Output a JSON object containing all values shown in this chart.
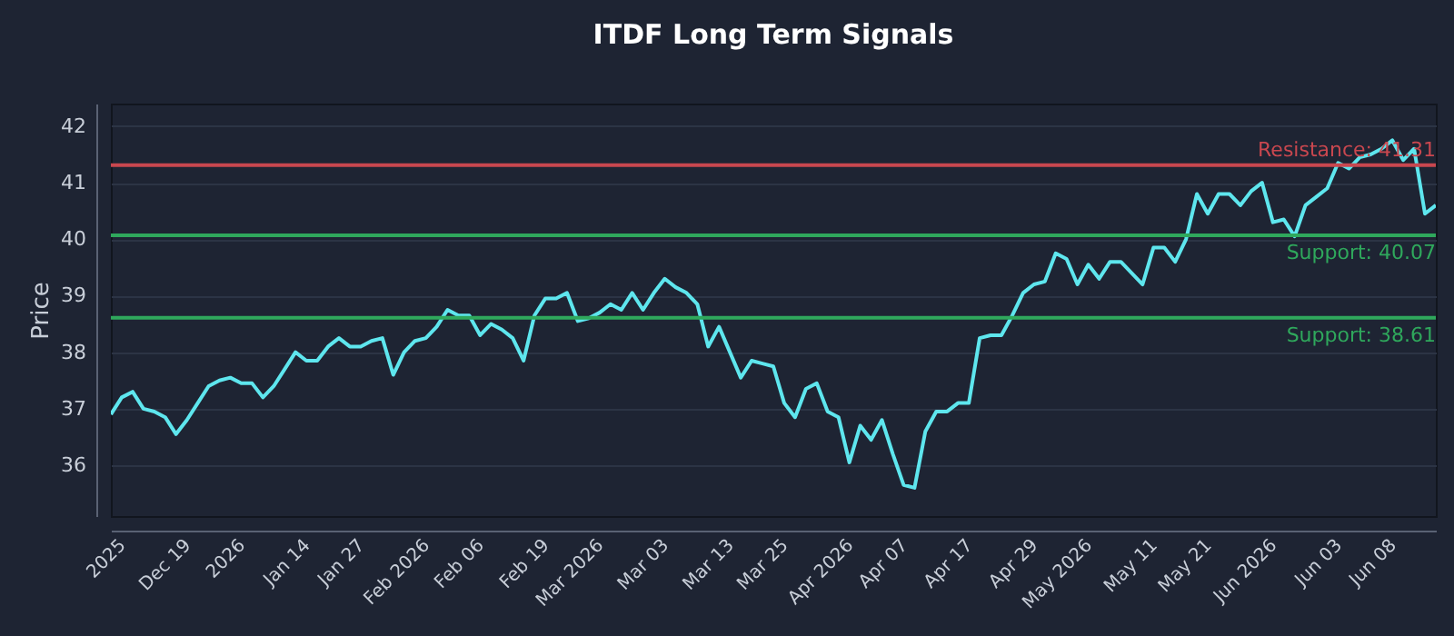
{
  "chart_data": {
    "type": "line",
    "title": "ITDF Long Term Signals",
    "ylabel": "Price",
    "categories": [
      null,
      "2025",
      null,
      null,
      null,
      null,
      null,
      "Dec 19",
      null,
      null,
      null,
      null,
      "2026",
      null,
      null,
      null,
      null,
      null,
      "Jan 14",
      null,
      null,
      null,
      null,
      "Jan 27",
      null,
      null,
      null,
      null,
      null,
      "Feb 2026",
      null,
      null,
      null,
      null,
      "Feb 06",
      null,
      null,
      null,
      null,
      null,
      "Feb 19",
      null,
      null,
      null,
      null,
      "Mar 2026",
      null,
      null,
      null,
      null,
      null,
      "Mar 03",
      null,
      null,
      null,
      null,
      null,
      "Mar 13",
      null,
      null,
      null,
      null,
      "Mar 25",
      null,
      null,
      null,
      null,
      null,
      "Apr 2026",
      null,
      null,
      null,
      null,
      "Apr 07",
      null,
      null,
      null,
      null,
      null,
      "Apr 17",
      null,
      null,
      null,
      null,
      null,
      "Apr 29",
      null,
      null,
      null,
      null,
      "May 2026",
      null,
      null,
      null,
      null,
      null,
      "May 11",
      null,
      null,
      null,
      null,
      "May 21",
      null,
      null,
      null,
      null,
      null,
      "Jun 2026",
      null,
      null,
      null,
      null,
      null,
      "Jun 03",
      null,
      null,
      null,
      null,
      "Jun 08",
      null,
      null,
      null,
      null
    ],
    "series": [
      {
        "color": "#5ee6ee",
        "values": [
          36.9,
          37.2,
          37.3,
          37.0,
          36.95,
          36.85,
          36.55,
          36.8,
          37.1,
          37.4,
          37.5,
          37.55,
          37.45,
          37.45,
          37.2,
          37.4,
          37.7,
          38.0,
          37.85,
          37.85,
          38.1,
          38.25,
          38.1,
          38.1,
          38.2,
          38.25,
          37.6,
          38.0,
          38.2,
          38.25,
          38.45,
          38.75,
          38.65,
          38.65,
          38.3,
          38.5,
          38.4,
          38.25,
          37.85,
          38.65,
          38.95,
          38.95,
          39.05,
          38.55,
          38.6,
          38.7,
          38.85,
          38.75,
          39.05,
          38.75,
          39.05,
          39.3,
          39.15,
          39.05,
          38.85,
          38.1,
          38.45,
          38.0,
          37.55,
          37.85,
          37.8,
          37.75,
          37.1,
          36.85,
          37.35,
          37.45,
          36.95,
          36.85,
          36.05,
          36.7,
          36.45,
          36.8,
          36.2,
          35.65,
          35.6,
          36.6,
          36.95,
          36.95,
          37.1,
          37.1,
          38.25,
          38.3,
          38.3,
          38.65,
          39.05,
          39.2,
          39.25,
          39.75,
          39.65,
          39.2,
          39.55,
          39.3,
          39.6,
          39.6,
          39.4,
          39.2,
          39.85,
          39.85,
          39.6,
          40.0,
          40.8,
          40.45,
          40.8,
          40.8,
          40.6,
          40.85,
          41.0,
          40.3,
          40.35,
          40.05,
          40.6,
          40.75,
          40.9,
          41.35,
          41.25,
          41.45,
          41.5,
          41.6,
          41.75,
          41.4,
          41.6,
          40.45,
          40.6
        ]
      }
    ],
    "ylim": [
      35.1,
      42.4
    ],
    "yticks": [
      36,
      37,
      38,
      39,
      40,
      41,
      42
    ],
    "grid": "y",
    "ref_lines": [
      {
        "axis": "y",
        "value": 41.31,
        "label": "Resistance: 41.31",
        "color": "#c9474f"
      },
      {
        "axis": "y",
        "value": 40.07,
        "label": "Support: 40.07",
        "color": "#2fa85c"
      },
      {
        "axis": "y",
        "value": 38.61,
        "label": "Support: 38.61",
        "color": "#2fa85c"
      }
    ]
  }
}
